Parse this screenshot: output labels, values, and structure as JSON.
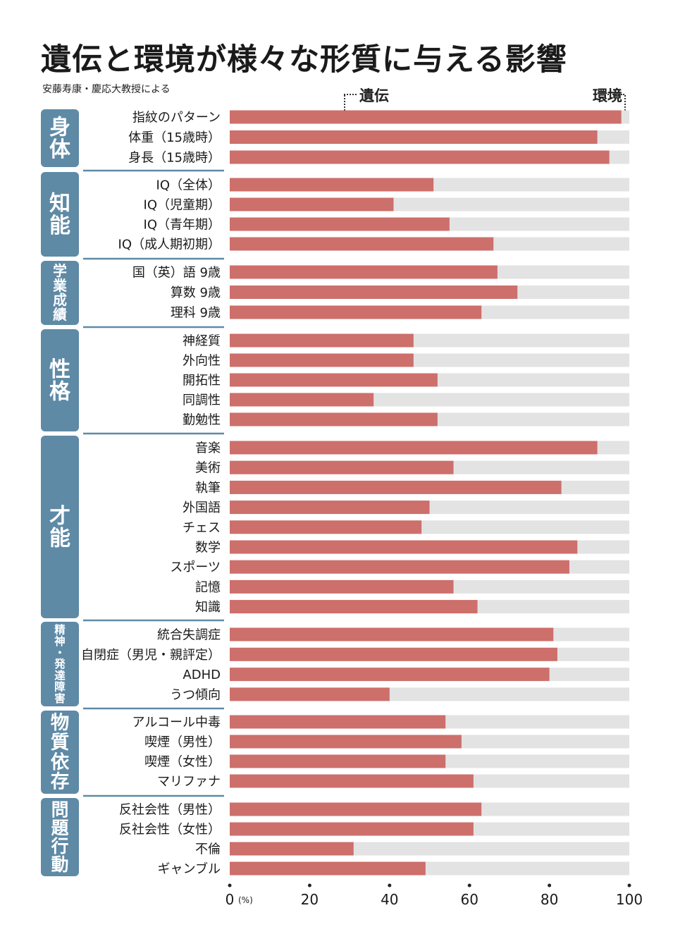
{
  "title": "遺伝と環境が様々な形質に与える影響",
  "subtitle": "安藤寿康・慶応大教授による",
  "legend": {
    "heredity": "遺伝",
    "environment": "環境"
  },
  "colors": {
    "heredity": "#cd6f6b",
    "environment": "#e3e3e4",
    "group_box": "#5e8aa6",
    "separator": "#5e8aa6"
  },
  "chart_data": {
    "type": "bar",
    "orientation": "horizontal",
    "stacked": true,
    "title": "遺伝と環境が様々な形質に与える影響",
    "xlim": [
      0,
      100
    ],
    "xticks": [
      "0",
      "20",
      "40",
      "60",
      "80",
      "100"
    ],
    "x_unit": "(%)",
    "series": [
      {
        "name": "遺伝",
        "color": "#cd6f6b"
      },
      {
        "name": "環境",
        "color": "#e3e3e4"
      }
    ],
    "groups": [
      {
        "label": "身体",
        "items": [
          {
            "label": "指紋のパターン",
            "heredity": 98
          },
          {
            "label": "体重（15歳時）",
            "heredity": 92
          },
          {
            "label": "身長（15歳時）",
            "heredity": 95
          }
        ]
      },
      {
        "label": "知能",
        "items": [
          {
            "label": "IQ（全体）",
            "heredity": 51
          },
          {
            "label": "IQ（児童期）",
            "heredity": 41
          },
          {
            "label": "IQ（青年期）",
            "heredity": 55
          },
          {
            "label": "IQ（成人期初期）",
            "heredity": 66
          }
        ]
      },
      {
        "label": "学業成績",
        "items": [
          {
            "label": "国（英）語 9歳",
            "heredity": 67
          },
          {
            "label": "算数 9歳",
            "heredity": 72
          },
          {
            "label": "理科 9歳",
            "heredity": 63
          }
        ]
      },
      {
        "label": "性格",
        "items": [
          {
            "label": "神経質",
            "heredity": 46
          },
          {
            "label": "外向性",
            "heredity": 46
          },
          {
            "label": "開拓性",
            "heredity": 52
          },
          {
            "label": "同調性",
            "heredity": 36
          },
          {
            "label": "勤勉性",
            "heredity": 52
          }
        ]
      },
      {
        "label": "才能",
        "items": [
          {
            "label": "音楽",
            "heredity": 92
          },
          {
            "label": "美術",
            "heredity": 56
          },
          {
            "label": "執筆",
            "heredity": 83
          },
          {
            "label": "外国語",
            "heredity": 50
          },
          {
            "label": "チェス",
            "heredity": 48
          },
          {
            "label": "数学",
            "heredity": 87
          },
          {
            "label": "スポーツ",
            "heredity": 85
          },
          {
            "label": "記憶",
            "heredity": 56
          },
          {
            "label": "知識",
            "heredity": 62
          }
        ]
      },
      {
        "label": "精神・発達障害",
        "items": [
          {
            "label": "統合失調症",
            "heredity": 81
          },
          {
            "label": "自閉症（男児・親評定）",
            "heredity": 82
          },
          {
            "label": "ADHD",
            "heredity": 80
          },
          {
            "label": "うつ傾向",
            "heredity": 40
          }
        ]
      },
      {
        "label": "物質依存",
        "items": [
          {
            "label": "アルコール中毒",
            "heredity": 54
          },
          {
            "label": "喫煙（男性）",
            "heredity": 58
          },
          {
            "label": "喫煙（女性）",
            "heredity": 54
          },
          {
            "label": "マリファナ",
            "heredity": 61
          }
        ]
      },
      {
        "label": "問題行動",
        "items": [
          {
            "label": "反社会性（男性）",
            "heredity": 63
          },
          {
            "label": "反社会性（女性）",
            "heredity": 61
          },
          {
            "label": "不倫",
            "heredity": 31
          },
          {
            "label": "ギャンブル",
            "heredity": 49
          }
        ]
      }
    ]
  }
}
